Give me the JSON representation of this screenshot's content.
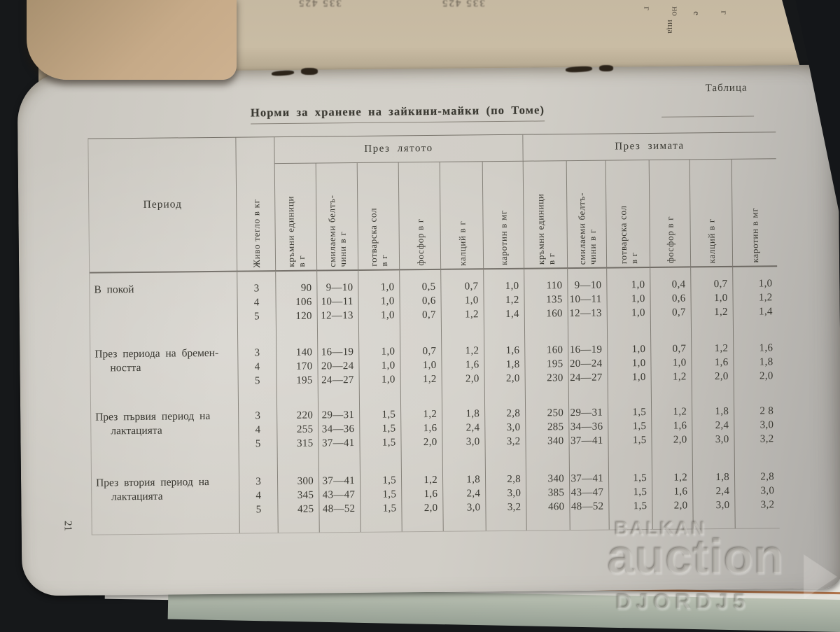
{
  "page": {
    "table_label": "Таблица",
    "title": "Норми за хранене на зайкини-майки (по Томе)",
    "page_number": "21"
  },
  "table": {
    "period_header": "Период",
    "live_weight_header": "Живо тегло в кг",
    "season_groups": [
      "През лятото",
      "През зимата"
    ],
    "nutrient_headers": [
      "кръмни единици\nв г",
      "смилаеми белтъ-\nчини в г",
      "готварска сол\nв г",
      "фосфор в г",
      "калций в г",
      "каротин в мг"
    ],
    "row_groups": [
      {
        "period_lines": [
          "В покой"
        ],
        "weights": [
          "3",
          "4",
          "5"
        ],
        "summer": [
          [
            "90",
            "9—10",
            "1,0",
            "0,5",
            "0,7",
            "1,0"
          ],
          [
            "106",
            "10—11",
            "1,0",
            "0,6",
            "1,0",
            "1,2"
          ],
          [
            "120",
            "12—13",
            "1,0",
            "0,7",
            "1,2",
            "1,4"
          ]
        ],
        "winter": [
          [
            "110",
            "9—10",
            "1,0",
            "0,4",
            "0,7",
            "1,0"
          ],
          [
            "135",
            "10—11",
            "1,0",
            "0,6",
            "1,0",
            "1,2"
          ],
          [
            "160",
            "12—13",
            "1,0",
            "0,7",
            "1,2",
            "1,4"
          ]
        ]
      },
      {
        "period_lines": [
          "През периода на бремен-",
          "ността"
        ],
        "weights": [
          "3",
          "4",
          "5"
        ],
        "summer": [
          [
            "140",
            "16—19",
            "1,0",
            "0,7",
            "1,2",
            "1,6"
          ],
          [
            "170",
            "20—24",
            "1,0",
            "1,0",
            "1,6",
            "1,8"
          ],
          [
            "195",
            "24—27",
            "1,0",
            "1,2",
            "2,0",
            "2,0"
          ]
        ],
        "winter": [
          [
            "160",
            "16—19",
            "1,0",
            "0,7",
            "1,2",
            "1,6"
          ],
          [
            "195",
            "20—24",
            "1,0",
            "1,0",
            "1,6",
            "1,8"
          ],
          [
            "230",
            "24—27",
            "1,0",
            "1,2",
            "2,0",
            "2,0"
          ]
        ]
      },
      {
        "period_lines": [
          "През  първия  период на",
          "лактацията"
        ],
        "weights": [
          "3",
          "4",
          "5"
        ],
        "summer": [
          [
            "220",
            "29—31",
            "1,5",
            "1,2",
            "1,8",
            "2,8"
          ],
          [
            "255",
            "34—36",
            "1,5",
            "1,6",
            "2,4",
            "3,0"
          ],
          [
            "315",
            "37—41",
            "1,5",
            "2,0",
            "3,0",
            "3,2"
          ]
        ],
        "winter": [
          [
            "250",
            "29—31",
            "1,5",
            "1,2",
            "1,8",
            "2 8"
          ],
          [
            "285",
            "34—36",
            "1,5",
            "1,6",
            "2,4",
            "3,0"
          ],
          [
            "340",
            "37—41",
            "1,5",
            "2,0",
            "3,0",
            "3,2"
          ]
        ]
      },
      {
        "period_lines": [
          "През  втория  период  на",
          "лактацията"
        ],
        "weights": [
          "3",
          "4",
          "5"
        ],
        "summer": [
          [
            "300",
            "37—41",
            "1,5",
            "1,2",
            "1,8",
            "2,8"
          ],
          [
            "345",
            "43—47",
            "1,5",
            "1,6",
            "2,4",
            "3,0"
          ],
          [
            "425",
            "48—52",
            "1,5",
            "2,0",
            "3,0",
            "3,2"
          ]
        ],
        "winter": [
          [
            "340",
            "37—41",
            "1,5",
            "1,2",
            "1,8",
            "2,8"
          ],
          [
            "385",
            "43—47",
            "1,5",
            "1,6",
            "2,4",
            "3,0"
          ],
          [
            "460",
            "48—52",
            "1,5",
            "2,0",
            "3,0",
            "3,2"
          ]
        ]
      }
    ]
  },
  "watermark": {
    "line1": "BALKAN",
    "line2": "auction",
    "line3": "DJORDJ5"
  },
  "artifacts": {
    "showthrough_digits_left": "335 425",
    "showthrough_digits_right": "335 425",
    "edge_fragments": [
      "г",
      "но",
      "е",
      "г",
      "ица"
    ]
  }
}
